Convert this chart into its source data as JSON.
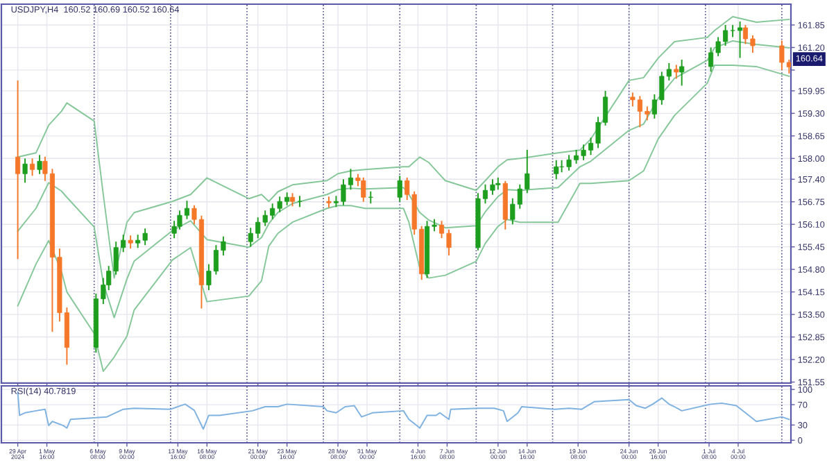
{
  "chart_data": [
    {
      "type": "candlestick",
      "title": "USDJPY,H4  160.52 160.69 160.52 160.64",
      "x": [
        "2024-04-29T00:00",
        "2024-04-29T16:00",
        "2024-04-30T08:00",
        "2024-05-01T00:00",
        "2024-05-01T12:00",
        "2024-05-02T04:00",
        "2024-05-02T20:00",
        "2024-05-03T12:00",
        "2024-05-06T04:00",
        "2024-05-06T20:00",
        "2024-05-07T08:00",
        "2024-05-08T00:00",
        "2024-05-08T16:00",
        "2024-05-09T08:00",
        "2024-05-10T00:00",
        "2024-05-10T16:00",
        "2024-05-13T08:00",
        "2024-05-13T20:00",
        "2024-05-14T12:00",
        "2024-05-15T04:00",
        "2024-05-15T20:00",
        "2024-05-16T12:00",
        "2024-05-17T04:00",
        "2024-05-17T20:00",
        "2024-05-20T08:00",
        "2024-05-21T00:00",
        "2024-05-21T16:00",
        "2024-05-22T08:00",
        "2024-05-23T00:00",
        "2024-05-23T16:00",
        "2024-05-24T04:00",
        "2024-05-24T20:00",
        "2024-05-27T12:00",
        "2024-05-28T04:00",
        "2024-05-28T20:00",
        "2024-05-29T12:00",
        "2024-05-30T04:00",
        "2024-05-30T16:00",
        "2024-05-31T08:00",
        "2024-06-03T00:00",
        "2024-06-03T16:00",
        "2024-06-04T08:00",
        "2024-06-05T00:00",
        "2024-06-05T12:00",
        "2024-06-06T04:00",
        "2024-06-06T20:00",
        "2024-06-07T12:00",
        "2024-06-10T04:00",
        "2024-06-10T20:00",
        "2024-06-11T12:00",
        "2024-06-12T00:00",
        "2024-06-12T16:00",
        "2024-06-13T08:00",
        "2024-06-14T00:00",
        "2024-06-14T16:00",
        "2024-06-17T08:00",
        "2024-06-17T20:00",
        "2024-06-18T12:00",
        "2024-06-19T04:00",
        "2024-06-19T20:00",
        "2024-06-20T12:00",
        "2024-06-21T04:00",
        "2024-06-21T20:00",
        "2024-06-24T08:00",
        "2024-06-25T00:00",
        "2024-06-25T16:00",
        "2024-06-26T08:00",
        "2024-06-27T00:00",
        "2024-06-27T16:00",
        "2024-06-28T08:00",
        "2024-06-28T20:00",
        "2024-07-01T12:00",
        "2024-07-02T04:00",
        "2024-07-02T20:00",
        "2024-07-03T12:00",
        "2024-07-04T04:00",
        "2024-07-04T16:00",
        "2024-07-05T08:00",
        "2024-07-08T00:00",
        "2024-07-08T16:00"
      ],
      "ohlc": [
        [
          158.04,
          160.25,
          155.1,
          157.56
        ],
        [
          157.56,
          158.0,
          157.3,
          157.84
        ],
        [
          157.84,
          158.0,
          157.5,
          157.68
        ],
        [
          157.68,
          158.1,
          157.55,
          157.92
        ],
        [
          157.92,
          158.05,
          157.35,
          157.56
        ],
        [
          157.56,
          157.7,
          153.0,
          155.15
        ],
        [
          155.15,
          155.4,
          153.3,
          153.55
        ],
        [
          153.55,
          153.7,
          152.05,
          152.55
        ],
        [
          152.55,
          154.1,
          152.4,
          153.95
        ],
        [
          153.95,
          154.55,
          153.8,
          154.35
        ],
        [
          154.35,
          154.9,
          154.2,
          154.75
        ],
        [
          154.75,
          155.6,
          154.65,
          155.43
        ],
        [
          155.43,
          155.8,
          155.3,
          155.64
        ],
        [
          155.64,
          155.78,
          155.4,
          155.56
        ],
        [
          155.56,
          155.8,
          155.42,
          155.64
        ],
        [
          155.64,
          155.98,
          155.5,
          155.84
        ],
        [
          155.84,
          156.2,
          155.7,
          156.04
        ],
        [
          156.04,
          156.5,
          155.95,
          156.36
        ],
        [
          156.36,
          156.78,
          156.25,
          156.56
        ],
        [
          156.56,
          156.65,
          156.1,
          156.24
        ],
        [
          156.24,
          156.35,
          153.67,
          154.35
        ],
        [
          154.35,
          154.95,
          154.2,
          154.75
        ],
        [
          154.75,
          155.5,
          154.65,
          155.35
        ],
        [
          155.35,
          155.75,
          155.2,
          155.6
        ],
        [
          155.6,
          156.0,
          155.45,
          155.84
        ],
        [
          155.84,
          156.3,
          155.7,
          156.16
        ],
        [
          156.16,
          156.5,
          156.05,
          156.36
        ],
        [
          156.36,
          156.7,
          156.25,
          156.56
        ],
        [
          156.56,
          156.9,
          156.45,
          156.76
        ],
        [
          156.76,
          157.02,
          156.65,
          156.88
        ],
        [
          156.88,
          157.0,
          156.62,
          156.76
        ],
        [
          156.76,
          156.92,
          156.6,
          156.76
        ],
        [
          156.76,
          156.9,
          156.58,
          156.72
        ],
        [
          156.72,
          156.92,
          156.6,
          156.76
        ],
        [
          156.76,
          157.4,
          156.65,
          157.24
        ],
        [
          157.24,
          157.7,
          157.1,
          157.44
        ],
        [
          157.44,
          157.55,
          157.2,
          157.36
        ],
        [
          157.36,
          157.45,
          156.75,
          156.88
        ],
        [
          156.88,
          157.05,
          156.7,
          156.88
        ],
        [
          156.88,
          157.5,
          156.75,
          157.36
        ],
        [
          157.36,
          157.45,
          156.8,
          156.96
        ],
        [
          156.96,
          157.05,
          155.8,
          155.96
        ],
        [
          155.96,
          156.05,
          154.5,
          154.67
        ],
        [
          154.67,
          156.2,
          154.55,
          156.04
        ],
        [
          156.04,
          156.25,
          155.9,
          156.08
        ],
        [
          156.08,
          156.2,
          155.7,
          155.84
        ],
        [
          155.84,
          155.95,
          155.2,
          155.43
        ],
        [
          155.43,
          157.0,
          155.35,
          156.84
        ],
        [
          156.84,
          157.25,
          156.7,
          157.08
        ],
        [
          157.08,
          157.4,
          156.95,
          157.24
        ],
        [
          157.24,
          157.45,
          157.1,
          157.28
        ],
        [
          157.28,
          157.35,
          155.95,
          156.24
        ],
        [
          156.24,
          156.85,
          156.1,
          156.68
        ],
        [
          156.68,
          157.25,
          156.55,
          157.12
        ],
        [
          157.12,
          158.25,
          157.0,
          157.56
        ],
        [
          157.56,
          157.95,
          157.4,
          157.76
        ],
        [
          157.76,
          157.95,
          157.6,
          157.76
        ],
        [
          157.76,
          158.1,
          157.65,
          157.96
        ],
        [
          157.96,
          158.25,
          157.85,
          158.08
        ],
        [
          158.08,
          158.4,
          157.95,
          158.24
        ],
        [
          158.24,
          158.6,
          158.1,
          158.44
        ],
        [
          158.44,
          159.2,
          158.3,
          159.04
        ],
        [
          159.04,
          159.95,
          158.95,
          159.77
        ],
        [
          159.77,
          159.9,
          159.5,
          159.69
        ],
        [
          159.69,
          159.8,
          158.9,
          159.36
        ],
        [
          159.36,
          159.5,
          159.1,
          159.28
        ],
        [
          159.28,
          159.85,
          159.15,
          159.69
        ],
        [
          159.69,
          160.5,
          159.55,
          160.37
        ],
        [
          160.37,
          160.75,
          160.25,
          160.57
        ],
        [
          160.57,
          160.7,
          160.3,
          160.49
        ],
        [
          160.49,
          160.85,
          160.1,
          160.65
        ],
        [
          160.65,
          161.2,
          160.5,
          161.05
        ],
        [
          161.05,
          161.5,
          160.95,
          161.37
        ],
        [
          161.37,
          161.85,
          161.25,
          161.69
        ],
        [
          161.69,
          161.85,
          161.5,
          161.69
        ],
        [
          161.69,
          161.95,
          160.9,
          161.77
        ],
        [
          161.77,
          161.85,
          161.3,
          161.45
        ],
        [
          161.45,
          161.55,
          161.05,
          161.25
        ],
        [
          161.25,
          161.4,
          160.55,
          160.77
        ],
        [
          160.77,
          160.85,
          160.45,
          160.64
        ]
      ],
      "colors": [
        "#f5782a",
        "#1e9e1e",
        "#f5782a",
        "#1e9e1e",
        "#f5782a",
        "#f5782a",
        "#f5782a",
        "#f5782a",
        "#1e9e1e",
        "#1e9e1e",
        "#1e9e1e",
        "#1e9e1e",
        "#1e9e1e",
        "#f5782a",
        "#1e9e1e",
        "#1e9e1e",
        "#1e9e1e",
        "#1e9e1e",
        "#1e9e1e",
        "#f5782a",
        "#f5782a",
        "#1e9e1e",
        "#1e9e1e",
        "#1e9e1e",
        "#1e9e1e",
        "#1e9e1e",
        "#1e9e1e",
        "#1e9e1e",
        "#1e9e1e",
        "#1e9e1e",
        "#f5782a",
        "#1e9e1e",
        "#f5782a",
        "#1e9e1e",
        "#1e9e1e",
        "#1e9e1e",
        "#f5782a",
        "#f5782a",
        "#1e9e1e",
        "#1e9e1e",
        "#f5782a",
        "#f5782a",
        "#f5782a",
        "#1e9e1e",
        "#1e9e1e",
        "#f5782a",
        "#f5782a",
        "#1e9e1e",
        "#1e9e1e",
        "#1e9e1e",
        "#1e9e1e",
        "#f5782a",
        "#1e9e1e",
        "#1e9e1e",
        "#1e9e1e",
        "#1e9e1e",
        "#1e9e1e",
        "#1e9e1e",
        "#1e9e1e",
        "#1e9e1e",
        "#1e9e1e",
        "#1e9e1e",
        "#1e9e1e",
        "#f5782a",
        "#f5782a",
        "#f5782a",
        "#1e9e1e",
        "#1e9e1e",
        "#1e9e1e",
        "#f5782a",
        "#1e9e1e",
        "#1e9e1e",
        "#1e9e1e",
        "#1e9e1e",
        "#1e9e1e",
        "#1e9e1e",
        "#f5782a",
        "#f5782a",
        "#f5782a",
        "#f5782a"
      ],
      "series": [
        {
          "type": "line",
          "color": "#86c79a",
          "x": [
            "2024-04-29T00:00",
            "2024-04-30T16:00",
            "2024-05-01T20:00",
            "2024-05-03T00:00",
            "2024-05-03T12:00",
            "2024-05-06T00:00",
            "2024-05-06T20:00",
            "2024-05-07T20:00",
            "2024-05-09T00:00",
            "2024-05-09T16:00",
            "2024-05-13T04:00",
            "2024-05-14T20:00",
            "2024-05-16T08:00",
            "2024-05-20T04:00",
            "2024-05-21T08:00",
            "2024-05-22T00:00",
            "2024-05-22T20:00",
            "2024-05-24T04:00",
            "2024-05-27T08:00",
            "2024-05-28T08:00",
            "2024-05-29T12:00",
            "2024-05-30T20:00",
            "2024-06-03T08:00",
            "2024-06-03T20:00",
            "2024-06-04T20:00",
            "2024-06-05T16:00",
            "2024-06-07T04:00",
            "2024-06-10T00:00",
            "2024-06-10T20:00",
            "2024-06-12T00:00",
            "2024-06-12T20:00",
            "2024-06-14T00:00",
            "2024-06-17T12:00",
            "2024-06-19T12:00",
            "2024-06-20T12:00",
            "2024-06-24T00:00",
            "2024-06-25T08:00",
            "2024-06-26T16:00",
            "2024-06-28T04:00",
            "2024-07-01T04:00",
            "2024-07-01T20:00",
            "2024-07-03T12:00",
            "2024-07-05T16:00",
            "2024-07-08T16:00"
          ],
          "values": [
            158.04,
            158.16,
            158.96,
            159.36,
            159.6,
            159.08,
            156.96,
            154.55,
            156.16,
            156.44,
            156.76,
            156.96,
            157.44,
            156.84,
            156.96,
            156.76,
            157.04,
            157.24,
            157.36,
            157.56,
            157.64,
            157.68,
            157.76,
            157.76,
            158.04,
            157.88,
            157.36,
            157.08,
            157.36,
            157.76,
            157.96,
            158.0,
            158.16,
            158.24,
            158.56,
            160.25,
            160.33,
            160.89,
            161.37,
            161.49,
            161.69,
            162.09,
            161.93,
            162.01
          ]
        },
        {
          "type": "line",
          "color": "#86c79a",
          "x": [
            "2024-04-29T00:00",
            "2024-04-30T16:00",
            "2024-05-01T20:00",
            "2024-05-03T00:00",
            "2024-05-03T12:00",
            "2024-05-06T00:00",
            "2024-05-06T20:00",
            "2024-05-07T20:00",
            "2024-05-09T00:00",
            "2024-05-09T16:00",
            "2024-05-13T04:00",
            "2024-05-14T20:00",
            "2024-05-16T08:00",
            "2024-05-20T04:00",
            "2024-05-21T08:00",
            "2024-05-22T00:00",
            "2024-05-22T20:00",
            "2024-05-24T04:00",
            "2024-05-27T08:00",
            "2024-05-28T08:00",
            "2024-05-29T12:00",
            "2024-05-30T20:00",
            "2024-06-03T08:00",
            "2024-06-03T20:00",
            "2024-06-04T20:00",
            "2024-06-05T16:00",
            "2024-06-07T04:00",
            "2024-06-10T00:00",
            "2024-06-10T20:00",
            "2024-06-12T00:00",
            "2024-06-12T20:00",
            "2024-06-14T00:00",
            "2024-06-17T12:00",
            "2024-06-19T12:00",
            "2024-06-20T12:00",
            "2024-06-24T00:00",
            "2024-06-25T08:00",
            "2024-06-26T16:00",
            "2024-06-28T04:00",
            "2024-07-01T04:00",
            "2024-07-01T20:00",
            "2024-07-03T12:00",
            "2024-07-05T16:00",
            "2024-07-08T16:00"
          ],
          "values": [
            155.9,
            156.56,
            157.3,
            157.06,
            156.88,
            156.02,
            154.41,
            153.41,
            154.52,
            155.04,
            155.92,
            156.2,
            155.66,
            155.44,
            155.72,
            156.12,
            156.44,
            156.7,
            156.96,
            157.1,
            157.14,
            157.12,
            157.16,
            156.96,
            156.44,
            156.22,
            156.0,
            156.06,
            156.46,
            156.9,
            157.1,
            157.08,
            157.16,
            157.76,
            157.92,
            158.81,
            158.99,
            159.73,
            160.31,
            160.83,
            161.19,
            161.39,
            161.29,
            161.19
          ]
        },
        {
          "type": "line",
          "color": "#86c79a",
          "x": [
            "2024-04-29T00:00",
            "2024-04-30T16:00",
            "2024-05-01T20:00",
            "2024-05-03T00:00",
            "2024-05-03T12:00",
            "2024-05-06T00:00",
            "2024-05-06T20:00",
            "2024-05-07T20:00",
            "2024-05-09T00:00",
            "2024-05-09T16:00",
            "2024-05-13T04:00",
            "2024-05-14T20:00",
            "2024-05-16T08:00",
            "2024-05-20T04:00",
            "2024-05-21T08:00",
            "2024-05-22T00:00",
            "2024-05-22T20:00",
            "2024-05-24T04:00",
            "2024-05-27T08:00",
            "2024-05-28T08:00",
            "2024-05-29T12:00",
            "2024-05-30T20:00",
            "2024-06-03T08:00",
            "2024-06-03T20:00",
            "2024-06-04T20:00",
            "2024-06-05T16:00",
            "2024-06-07T04:00",
            "2024-06-10T00:00",
            "2024-06-10T20:00",
            "2024-06-12T00:00",
            "2024-06-12T20:00",
            "2024-06-14T00:00",
            "2024-06-17T12:00",
            "2024-06-19T12:00",
            "2024-06-20T12:00",
            "2024-06-24T00:00",
            "2024-06-25T08:00",
            "2024-06-26T16:00",
            "2024-06-28T04:00",
            "2024-07-01T04:00",
            "2024-07-01T20:00",
            "2024-07-03T12:00",
            "2024-07-05T16:00",
            "2024-07-08T16:00"
          ],
          "values": [
            153.75,
            154.95,
            155.63,
            154.75,
            154.15,
            152.95,
            151.86,
            152.27,
            152.87,
            153.63,
            155.07,
            155.43,
            153.87,
            154.03,
            154.47,
            155.47,
            155.84,
            156.16,
            156.56,
            156.64,
            156.64,
            156.56,
            156.56,
            156.16,
            154.83,
            154.55,
            154.63,
            155.03,
            155.55,
            156.04,
            156.24,
            156.16,
            156.16,
            157.28,
            157.28,
            157.36,
            157.64,
            158.56,
            159.24,
            160.17,
            160.69,
            160.69,
            160.65,
            160.37
          ]
        }
      ],
      "xlim": [
        "2024-04-27T12:00",
        "2024-07-08T20:00"
      ],
      "ylim": [
        151.52,
        162.45
      ],
      "xticks": [
        {
          "value": "2024-04-29T00:00",
          "label": null
        },
        {
          "value": "2024-05-01T16:00",
          "label": null
        },
        {
          "value": "2024-05-06T08:00",
          "label": null
        },
        {
          "value": "2024-05-09T00:00",
          "label": null
        },
        {
          "value": "2024-05-13T16:00",
          "label": null
        },
        {
          "value": "2024-05-16T08:00",
          "label": null
        },
        {
          "value": "2024-05-21T00:00",
          "label": null
        },
        {
          "value": "2024-05-23T16:00",
          "label": null
        },
        {
          "value": "2024-05-28T08:00",
          "label": null
        },
        {
          "value": "2024-05-31T00:00",
          "label": null
        },
        {
          "value": "2024-06-04T16:00",
          "label": null
        },
        {
          "value": "2024-06-07T08:00",
          "label": null
        },
        {
          "value": "2024-06-12T00:00",
          "label": null
        },
        {
          "value": "2024-06-14T16:00",
          "label": null
        },
        {
          "value": "2024-06-19T08:00",
          "label": null
        },
        {
          "value": "2024-06-24T00:00",
          "label": null
        },
        {
          "value": "2024-06-26T16:00",
          "label": null
        },
        {
          "value": "2024-07-01T08:00",
          "label": null
        },
        {
          "value": "2024-07-04T00:00",
          "label": null
        }
      ],
      "yticks": [
        {
          "value": 151.55,
          "label": "151.55"
        },
        {
          "value": 152.2,
          "label": "152.20"
        },
        {
          "value": 152.85,
          "label": "152.85"
        },
        {
          "value": 153.5,
          "label": "153.50"
        },
        {
          "value": 154.15,
          "label": "154.15"
        },
        {
          "value": 154.8,
          "label": "154.80"
        },
        {
          "value": 155.45,
          "label": "155.45"
        },
        {
          "value": 156.1,
          "label": "156.10"
        },
        {
          "value": 156.75,
          "label": "156.75"
        },
        {
          "value": 157.4,
          "label": "157.40"
        },
        {
          "value": 158.0,
          "label": "158.00"
        },
        {
          "value": 158.65,
          "label": "158.65"
        },
        {
          "value": 159.3,
          "label": "159.30"
        },
        {
          "value": 159.95,
          "label": "159.95"
        },
        {
          "value": 160.55,
          "label": null
        },
        {
          "value": 161.2,
          "label": "161.20"
        },
        {
          "value": 161.85,
          "label": "161.85"
        }
      ],
      "grid": true,
      "tick_labels": "y",
      "ref_lines": [
        {
          "axis": "x",
          "value": "2024-05-06T00:00",
          "line_style": "dotted",
          "color": "#50508c"
        },
        {
          "axis": "x",
          "value": "2024-05-13T00:00",
          "line_style": "dotted",
          "color": "#50508c"
        },
        {
          "axis": "x",
          "value": "2024-05-20T00:00",
          "line_style": "dotted",
          "color": "#50508c"
        },
        {
          "axis": "x",
          "value": "2024-05-27T00:00",
          "line_style": "dotted",
          "color": "#50508c"
        },
        {
          "axis": "x",
          "value": "2024-06-03T00:00",
          "line_style": "dotted",
          "color": "#50508c"
        },
        {
          "axis": "x",
          "value": "2024-06-10T00:00",
          "line_style": "dotted",
          "color": "#50508c"
        },
        {
          "axis": "x",
          "value": "2024-06-17T00:00",
          "line_style": "dotted",
          "color": "#50508c"
        },
        {
          "axis": "x",
          "value": "2024-06-24T00:00",
          "line_style": "dotted",
          "color": "#50508c"
        },
        {
          "axis": "x",
          "value": "2024-07-01T00:00",
          "line_style": "dotted",
          "color": "#50508c"
        },
        {
          "axis": "x",
          "value": "2024-07-08T00:00",
          "line_style": "dotted",
          "color": "#50508c"
        }
      ],
      "annotations": [
        "160.64"
      ]
    },
    {
      "type": "line",
      "title": "RSI(14) 40.7819",
      "series": [
        {
          "type": "line",
          "color": "#7fb2e0",
          "x": [
            "2024-04-29T00:00",
            "2024-04-29T04:00",
            "2024-04-29T16:00",
            "2024-04-30T16:00",
            "2024-05-01T12:00",
            "2024-05-01T20:00",
            "2024-05-02T04:00",
            "2024-05-03T04:00",
            "2024-05-03T12:00",
            "2024-05-03T20:00",
            "2024-05-07T04:00",
            "2024-05-08T16:00",
            "2024-05-09T16:00",
            "2024-05-13T00:00",
            "2024-05-14T08:00",
            "2024-05-15T04:00",
            "2024-05-16T00:00",
            "2024-05-16T12:00",
            "2024-05-17T12:00",
            "2024-05-20T12:00",
            "2024-05-21T16:00",
            "2024-05-22T20:00",
            "2024-05-23T16:00",
            "2024-05-27T00:00",
            "2024-05-27T08:00",
            "2024-05-28T04:00",
            "2024-05-29T00:00",
            "2024-05-29T20:00",
            "2024-05-30T12:00",
            "2024-05-31T12:00",
            "2024-06-03T08:00",
            "2024-06-03T20:00",
            "2024-06-04T16:00",
            "2024-06-04T20:00",
            "2024-06-05T12:00",
            "2024-06-06T08:00",
            "2024-06-06T16:00",
            "2024-06-07T12:00",
            "2024-06-07T16:00",
            "2024-06-10T04:00",
            "2024-06-11T16:00",
            "2024-06-12T12:00",
            "2024-06-12T20:00",
            "2024-06-13T20:00",
            "2024-06-14T04:00",
            "2024-06-17T04:00",
            "2024-06-18T12:00",
            "2024-06-19T16:00",
            "2024-06-20T20:00",
            "2024-06-24T00:00",
            "2024-06-24T16:00",
            "2024-06-25T12:00",
            "2024-06-26T04:00",
            "2024-06-27T00:00",
            "2024-06-27T16:00",
            "2024-06-28T04:00",
            "2024-06-28T20:00",
            "2024-07-01T12:00",
            "2024-07-02T12:00",
            "2024-07-03T20:00",
            "2024-07-04T16:00",
            "2024-07-05T16:00",
            "2024-07-08T00:00",
            "2024-07-08T16:00"
          ],
          "values": [
            95,
            49,
            54,
            58,
            61,
            29,
            37,
            29,
            24,
            41,
            46,
            61,
            63,
            61,
            71,
            59,
            22,
            49,
            49,
            58,
            66,
            66,
            71,
            66,
            58,
            54,
            66,
            68,
            46,
            54,
            58,
            41,
            27,
            24,
            49,
            49,
            54,
            41,
            61,
            63,
            63,
            58,
            37,
            54,
            66,
            61,
            63,
            61,
            76,
            80,
            68,
            63,
            71,
            83,
            71,
            66,
            58,
            71,
            73,
            68,
            54,
            37,
            46,
            41
          ]
        }
      ],
      "xlim": [
        "2024-04-27T12:00",
        "2024-07-08T20:00"
      ],
      "ylim": [
        -5,
        107
      ],
      "xticks": [
        {
          "value": "2024-04-29T00:00",
          "label": "29 Apr 2024"
        },
        {
          "value": "2024-05-01T16:00",
          "label": "1 May 16:00"
        },
        {
          "value": "2024-05-06T08:00",
          "label": "6 May 08:00"
        },
        {
          "value": "2024-05-09T00:00",
          "label": "9 May 00:00"
        },
        {
          "value": "2024-05-13T16:00",
          "label": "13 May 16:00"
        },
        {
          "value": "2024-05-16T08:00",
          "label": "16 May 08:00"
        },
        {
          "value": "2024-05-21T00:00",
          "label": "21 May 00:00"
        },
        {
          "value": "2024-05-23T16:00",
          "label": "23 May 16:00"
        },
        {
          "value": "2024-05-28T08:00",
          "label": "28 May 08:00"
        },
        {
          "value": "2024-05-31T00:00",
          "label": "31 May 00:00"
        },
        {
          "value": "2024-06-04T16:00",
          "label": "4 Jun 16:00"
        },
        {
          "value": "2024-06-07T08:00",
          "label": "7 Jun 08:00"
        },
        {
          "value": "2024-06-12T00:00",
          "label": "12 Jun 00:00"
        },
        {
          "value": "2024-06-14T16:00",
          "label": "14 Jun 16:00"
        },
        {
          "value": "2024-06-19T08:00",
          "label": "19 Jun 08:00"
        },
        {
          "value": "2024-06-24T00:00",
          "label": "24 Jun 00:00"
        },
        {
          "value": "2024-06-26T16:00",
          "label": "26 Jun 16:00"
        },
        {
          "value": "2024-07-01T08:00",
          "label": "1 Jul 08:00"
        },
        {
          "value": "2024-07-04T00:00",
          "label": "4 Jul 00:00"
        }
      ],
      "yticks": [
        0,
        30,
        70,
        100
      ],
      "grid": true,
      "ref_lines": [
        {
          "axis": "x",
          "value": "2024-05-06T00:00",
          "line_style": "dotted",
          "color": "#50508c"
        },
        {
          "axis": "x",
          "value": "2024-05-13T00:00",
          "line_style": "dotted",
          "color": "#50508c"
        },
        {
          "axis": "x",
          "value": "2024-05-20T00:00",
          "line_style": "dotted",
          "color": "#50508c"
        },
        {
          "axis": "x",
          "value": "2024-05-27T00:00",
          "line_style": "dotted",
          "color": "#50508c"
        },
        {
          "axis": "x",
          "value": "2024-06-03T00:00",
          "line_style": "dotted",
          "color": "#50508c"
        },
        {
          "axis": "x",
          "value": "2024-06-10T00:00",
          "line_style": "dotted",
          "color": "#50508c"
        },
        {
          "axis": "x",
          "value": "2024-06-17T00:00",
          "line_style": "dotted",
          "color": "#50508c"
        },
        {
          "axis": "x",
          "value": "2024-06-24T00:00",
          "line_style": "dotted",
          "color": "#50508c"
        },
        {
          "axis": "x",
          "value": "2024-07-01T00:00",
          "line_style": "dotted",
          "color": "#50508c"
        },
        {
          "axis": "x",
          "value": "2024-07-08T00:00",
          "line_style": "dotted",
          "color": "#50508c"
        }
      ]
    }
  ]
}
